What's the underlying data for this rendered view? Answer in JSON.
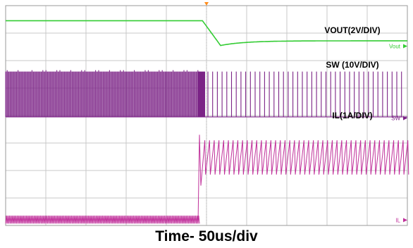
{
  "chart_data": {
    "type": "line",
    "title": "",
    "xlabel": "Time- 50us/div",
    "x_divisions": 10,
    "y_divisions": 8,
    "grid": true,
    "event_division": 5.0,
    "series": [
      {
        "name": "VOUT(2V/DIV)",
        "marker": "Vout",
        "color": "#33cc33",
        "scale": "2V/DIV",
        "baseline_div": 7.45,
        "before_level_div": 7.45,
        "min_level_div": 6.55,
        "after_level_div": 6.72
      },
      {
        "name": "SW (10V/DIV)",
        "marker": "SW",
        "color": "#7b2386",
        "scale": "10V/DIV",
        "low_div": 3.95,
        "high_div": 5.6,
        "switching_before": "dense",
        "switching_after": "sparse"
      },
      {
        "name": "IL(1A/DIV)",
        "marker": "IL",
        "color": "#c0309a",
        "scale": "1A/DIV",
        "before_min_div": 0.07,
        "before_max_div": 0.36,
        "after_min_div": 1.85,
        "after_max_div": 3.1,
        "peak_div": 3.3
      }
    ]
  },
  "caption": "Time- 50us/div"
}
